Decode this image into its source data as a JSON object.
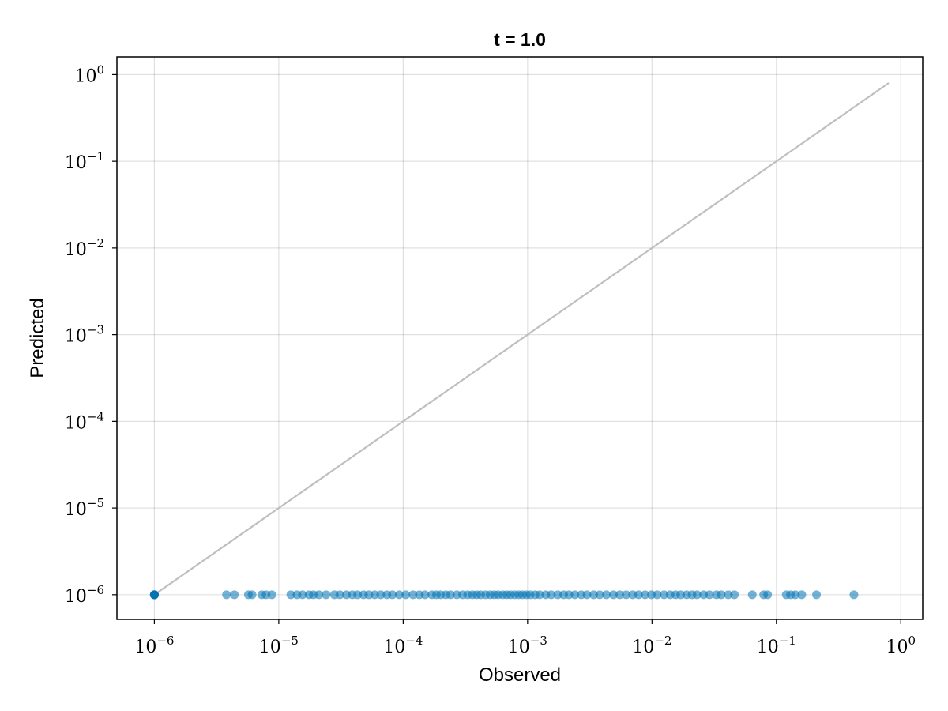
{
  "chart_data": {
    "type": "scatter",
    "title": "t = 1.0",
    "xlabel": "Observed",
    "ylabel": "Predicted",
    "xscale": "log",
    "yscale": "log",
    "xlim": [
      5e-07,
      1.5
    ],
    "ylim": [
      5.2e-07,
      1.6
    ],
    "grid": true,
    "x_ticks": [
      {
        "value": 1e-06,
        "base": "10",
        "exp": "−6"
      },
      {
        "value": 1e-05,
        "base": "10",
        "exp": "−5"
      },
      {
        "value": 0.0001,
        "base": "10",
        "exp": "−4"
      },
      {
        "value": 0.001,
        "base": "10",
        "exp": "−3"
      },
      {
        "value": 0.01,
        "base": "10",
        "exp": "−2"
      },
      {
        "value": 0.1,
        "base": "10",
        "exp": "−1"
      },
      {
        "value": 1,
        "base": "10",
        "exp": "0"
      }
    ],
    "y_ticks": [
      {
        "value": 1,
        "base": "10",
        "exp": "0"
      },
      {
        "value": 0.1,
        "base": "10",
        "exp": "−1"
      },
      {
        "value": 0.01,
        "base": "10",
        "exp": "−2"
      },
      {
        "value": 0.001,
        "base": "10",
        "exp": "−3"
      },
      {
        "value": 0.0001,
        "base": "10",
        "exp": "−4"
      },
      {
        "value": 1e-05,
        "base": "10",
        "exp": "−5"
      },
      {
        "value": 1e-06,
        "base": "10",
        "exp": "−6"
      }
    ],
    "reference_line": {
      "x": [
        1e-06,
        0.8
      ],
      "y": [
        1e-06,
        0.8
      ],
      "color": "#bfbfbf"
    },
    "series": [
      {
        "color": "#0072b2",
        "opacity": 0.55,
        "y": 1e-06,
        "x": [
          1e-06,
          1e-06,
          1e-06,
          1e-06,
          1e-06,
          1e-06,
          3.8e-06,
          4.4e-06,
          5.7e-06,
          6.1e-06,
          7.3e-06,
          7.9e-06,
          8.8e-06,
          1.25e-05,
          1.4e-05,
          1.55e-05,
          1.75e-05,
          1.9e-05,
          2.1e-05,
          2.4e-05,
          2.8e-05,
          3.1e-05,
          3.5e-05,
          3.9e-05,
          4.3e-05,
          4.8e-05,
          5.3e-05,
          5.9e-05,
          6.6e-05,
          7.4e-05,
          8.2e-05,
          9.3e-05,
          0.000105,
          0.00012,
          0.000135,
          0.00015,
          0.00017,
          0.000185,
          0.0002,
          0.00022,
          0.00024,
          0.00027,
          0.0003,
          0.00033,
          0.00036,
          0.00039,
          0.00042,
          0.00046,
          0.0005,
          0.00054,
          0.00058,
          0.00063,
          0.00068,
          0.00073,
          0.00079,
          0.00085,
          0.00091,
          0.00098,
          0.00105,
          0.00115,
          0.00125,
          0.0014,
          0.00155,
          0.00175,
          0.00195,
          0.00215,
          0.0024,
          0.0027,
          0.003,
          0.0034,
          0.0038,
          0.0043,
          0.0049,
          0.0055,
          0.0062,
          0.007,
          0.0078,
          0.0088,
          0.0099,
          0.011,
          0.0125,
          0.014,
          0.0155,
          0.017,
          0.019,
          0.021,
          0.023,
          0.026,
          0.029,
          0.033,
          0.036,
          0.041,
          0.046,
          0.064,
          0.079,
          0.085,
          0.12,
          0.13,
          0.142,
          0.16,
          0.21,
          0.42
        ]
      }
    ]
  }
}
